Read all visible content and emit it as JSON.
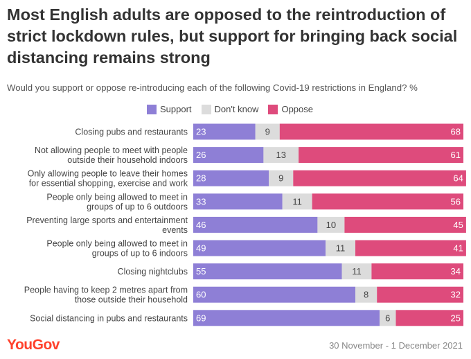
{
  "title": "Most English adults are opposed to the reintroduction of strict lockdown rules, but support for bringing back social distancing remains strong",
  "subtitle": "Would you support or oppose re-introducing each of the following Covid-19 restrictions in England? %",
  "legend": [
    {
      "label": "Support",
      "color": "#8e7fd6"
    },
    {
      "label": "Don't know",
      "color": "#dcdcdc"
    },
    {
      "label": "Oppose",
      "color": "#de4b7c"
    }
  ],
  "footer": {
    "brand": "YouGov",
    "date": "30 November - 1 December 2021"
  },
  "chart_data": {
    "type": "bar",
    "orientation": "horizontal",
    "stacked": true,
    "categories": [
      [
        "Closing pubs and restaurants"
      ],
      [
        "Not allowing people to meet with people",
        "outside their household indoors"
      ],
      [
        "Only allowing people to leave their homes",
        "for essential shopping, exercise and work"
      ],
      [
        "People only being allowed to meet in",
        "groups of up to 6 outdoors"
      ],
      [
        "Preventing large sports and entertainment",
        "events"
      ],
      [
        "People only being allowed to meet in",
        "groups of up to 6 indoors"
      ],
      [
        "Closing nightclubs"
      ],
      [
        "People having to keep 2 metres apart from",
        "those outside their household"
      ],
      [
        "Social distancing in pubs and restaurants"
      ]
    ],
    "series": [
      {
        "name": "Support",
        "color": "#8e7fd6",
        "values": [
          23,
          26,
          28,
          33,
          46,
          49,
          55,
          60,
          69
        ]
      },
      {
        "name": "Don't know",
        "color": "#dcdcdc",
        "values": [
          9,
          13,
          9,
          11,
          10,
          11,
          11,
          8,
          6
        ]
      },
      {
        "name": "Oppose",
        "color": "#de4b7c",
        "values": [
          68,
          61,
          64,
          56,
          45,
          41,
          34,
          32,
          25
        ]
      }
    ],
    "xlim": [
      0,
      100
    ]
  }
}
